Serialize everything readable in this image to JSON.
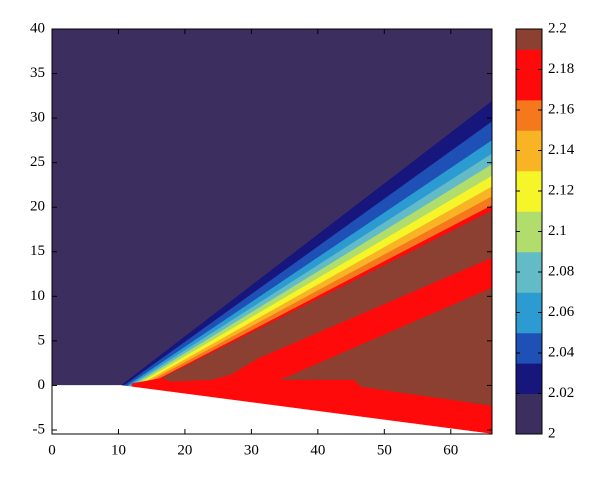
{
  "chart_data": {
    "type": "contour",
    "xlim": [
      0,
      66.2
    ],
    "ylim": [
      -5.45,
      40
    ],
    "xticks": [
      0,
      10,
      20,
      30,
      40,
      50,
      60
    ],
    "yticks": [
      -5,
      0,
      5,
      10,
      15,
      20,
      25,
      30,
      35,
      40
    ],
    "regions": [
      {
        "color": "#3c2f5f",
        "points": [
          [
            0,
            -5.45
          ],
          [
            0,
            40
          ],
          [
            66.2,
            40
          ],
          [
            66.2,
            -5.45
          ]
        ]
      },
      {
        "color": "#16167c",
        "points": [
          [
            10.4,
            0
          ],
          [
            66.2,
            31.9
          ],
          [
            66.2,
            -5.45
          ],
          [
            10.4,
            -5.45
          ]
        ]
      },
      {
        "color": "#1e50b6",
        "points": [
          [
            10.9,
            0
          ],
          [
            66.2,
            29.6
          ],
          [
            66.2,
            -5.45
          ],
          [
            10.9,
            -5.45
          ]
        ]
      },
      {
        "color": "#2b9bd2",
        "points": [
          [
            11.4,
            0
          ],
          [
            66.2,
            27.5
          ],
          [
            66.2,
            -5.45
          ],
          [
            11.4,
            -5.45
          ]
        ]
      },
      {
        "color": "#62bbc6",
        "points": [
          [
            11.8,
            0
          ],
          [
            66.2,
            26
          ],
          [
            66.2,
            -5.45
          ],
          [
            11.8,
            -5.45
          ]
        ]
      },
      {
        "color": "#b0dd6c",
        "points": [
          [
            12.2,
            0
          ],
          [
            66.2,
            24.8
          ],
          [
            66.2,
            -5.45
          ],
          [
            12.2,
            -5.45
          ]
        ]
      },
      {
        "color": "#f6f52a",
        "points": [
          [
            12.6,
            0
          ],
          [
            66.2,
            23.5
          ],
          [
            66.2,
            -5.45
          ],
          [
            12.6,
            -5.45
          ]
        ]
      },
      {
        "color": "#f9b425",
        "points": [
          [
            13.1,
            0
          ],
          [
            66.2,
            22.3
          ],
          [
            66.2,
            -5.45
          ],
          [
            13.1,
            -5.45
          ]
        ]
      },
      {
        "color": "#f6781c",
        "points": [
          [
            13.6,
            0
          ],
          [
            66.2,
            21.2
          ],
          [
            66.2,
            -5.45
          ],
          [
            13.6,
            -5.45
          ]
        ]
      },
      {
        "color": "#ff0a0a",
        "points": [
          [
            14.2,
            0
          ],
          [
            66.2,
            20.2
          ],
          [
            66.2,
            -5.45
          ],
          [
            14.2,
            -5.45
          ]
        ]
      },
      {
        "color": "#8b4032",
        "points": [
          [
            16,
            0.6
          ],
          [
            66.2,
            19.6
          ],
          [
            66.2,
            -5.45
          ],
          [
            16,
            -5.45
          ]
        ]
      },
      {
        "color": "#ff0a0a",
        "points": [
          [
            12,
            0.2
          ],
          [
            16.5,
            0.8
          ],
          [
            18,
            0.4
          ],
          [
            24,
            0.6
          ],
          [
            27,
            1.2
          ],
          [
            31,
            3
          ],
          [
            66.2,
            14.3
          ],
          [
            66.2,
            11
          ],
          [
            36,
            1.2
          ],
          [
            34,
            0.6
          ],
          [
            45.5,
            0.6
          ],
          [
            46.5,
            -0.2
          ],
          [
            66.2,
            -2.3
          ],
          [
            66.2,
            -5.45
          ],
          [
            12,
            -5.45
          ]
        ]
      },
      {
        "color": "#ffffff",
        "points": [
          [
            0,
            0
          ],
          [
            10.4,
            0
          ],
          [
            66.2,
            -5.45
          ],
          [
            0,
            -5.45
          ]
        ]
      }
    ],
    "colorbar": {
      "lim": [
        2,
        2.2
      ],
      "ticks": [
        2,
        2.02,
        2.04,
        2.06,
        2.08,
        2.1,
        2.12,
        2.14,
        2.16,
        2.18,
        2.2
      ],
      "boundaries": [
        2,
        2.02,
        2.035,
        2.05,
        2.07,
        2.09,
        2.11,
        2.13,
        2.15,
        2.165,
        2.19,
        2.2
      ],
      "colors": [
        "#3c2f5f",
        "#16167c",
        "#1e50b6",
        "#2b9bd2",
        "#62bbc6",
        "#b0dd6c",
        "#f6f52a",
        "#f9b425",
        "#f6781c",
        "#ff0a0a",
        "#8b4032"
      ]
    }
  }
}
